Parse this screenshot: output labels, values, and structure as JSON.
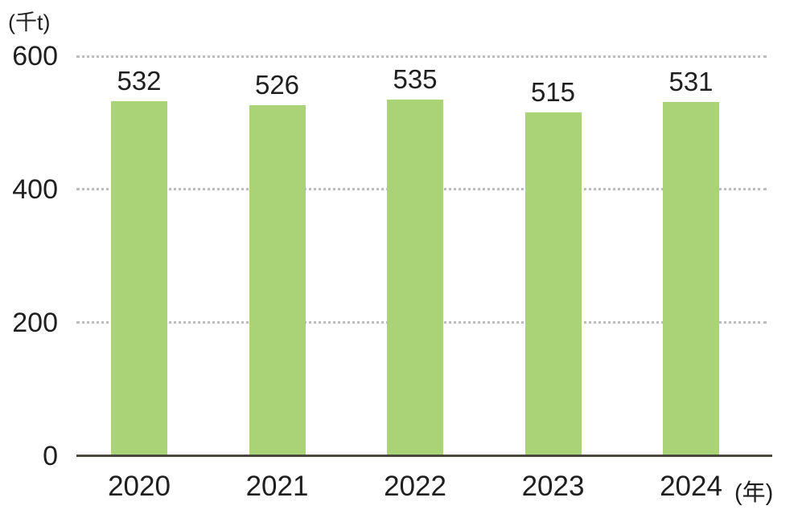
{
  "chart_data": {
    "type": "bar",
    "title": "",
    "categories": [
      "2020",
      "2021",
      "2022",
      "2023",
      "2024"
    ],
    "values": [
      532,
      526,
      535,
      515,
      531
    ],
    "y_axis_unit": "(千t)",
    "x_axis_unit": "(年)",
    "xlabel": "",
    "ylabel": "",
    "y_ticks": [
      0,
      200,
      400,
      600
    ],
    "ylim": [
      0,
      600
    ],
    "grid": "horizontal dotted gridlines at 200, 400, 600",
    "legend": "none",
    "colors": {
      "bar_fill": "#aad378",
      "axis_line": "#4a473f",
      "gridline": "#bdbdbd",
      "text": "#1f1f1f"
    }
  }
}
